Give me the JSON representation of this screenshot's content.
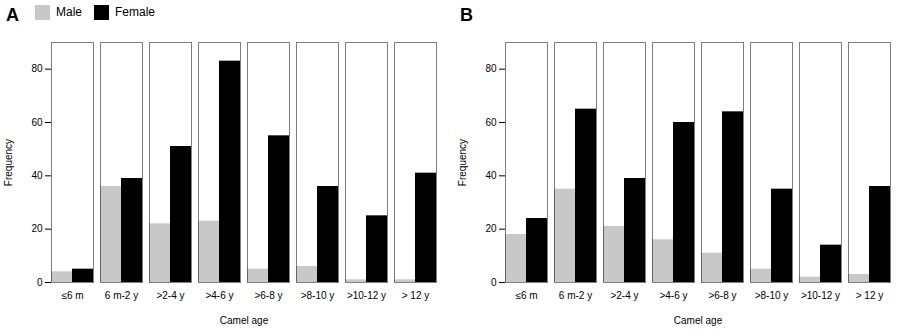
{
  "chart_data": [
    {
      "type": "bar",
      "title": "A",
      "xlabel": "Camel age",
      "ylabel": "Frequency",
      "categories": [
        "≤6 m",
        "6 m-2 y",
        ">2-4 y",
        ">4-6 y",
        ">6-8 y",
        ">8-10 y",
        ">10-12 y",
        "> 12 y"
      ],
      "series": [
        {
          "name": "Male",
          "color": "#c8c8c8",
          "values": [
            4,
            36,
            22,
            23,
            5,
            6,
            1,
            1
          ]
        },
        {
          "name": "Female",
          "color": "#000000",
          "values": [
            5,
            39,
            51,
            83,
            55,
            36,
            25,
            41
          ]
        }
      ],
      "ylim": [
        0,
        90
      ],
      "yticks": [
        0,
        20,
        40,
        60,
        80
      ],
      "grid": false,
      "legend": "upper left"
    },
    {
      "type": "bar",
      "title": "B",
      "xlabel": "Camel age",
      "ylabel": "Frequency",
      "categories": [
        "≤6 m",
        "6 m-2 y",
        ">2-4 y",
        ">4-6 y",
        ">6-8 y",
        ">8-10 y",
        ">10-12 y",
        "> 12 y"
      ],
      "series": [
        {
          "name": "Male",
          "color": "#c8c8c8",
          "values": [
            18,
            35,
            21,
            16,
            11,
            5,
            2,
            3
          ]
        },
        {
          "name": "Female",
          "color": "#000000",
          "values": [
            24,
            65,
            39,
            60,
            64,
            35,
            14,
            36
          ]
        }
      ],
      "ylim": [
        0,
        90
      ],
      "yticks": [
        0,
        20,
        40,
        60,
        80
      ],
      "grid": false
    }
  ]
}
